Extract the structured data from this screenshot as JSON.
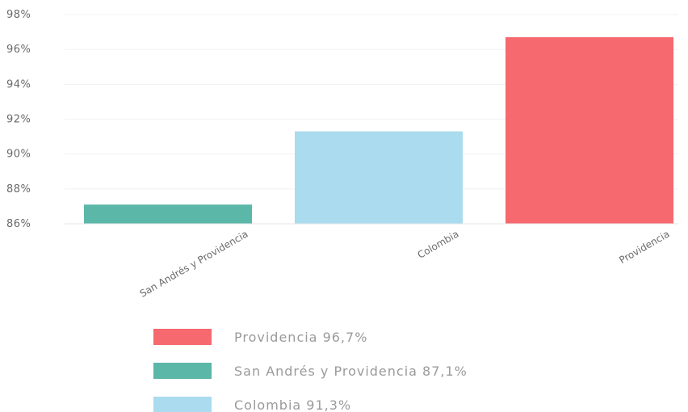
{
  "chart_data": {
    "type": "bar",
    "categories": [
      "San Andrés y Providencia",
      "Colombia",
      "Providencia"
    ],
    "values": [
      87.1,
      91.3,
      96.7
    ],
    "colors": [
      "#5bb7a8",
      "#aadbee",
      "#f5696f"
    ],
    "yticks": [
      "86%",
      "88%",
      "90%",
      "92%",
      "94%",
      "96%",
      "98%"
    ],
    "ylim": [
      86,
      98
    ],
    "grid": true,
    "legend_position": "bottom",
    "legend": [
      {
        "label": "Providencia  96,7%",
        "color": "#f5696f"
      },
      {
        "label": "San Andrés y Providencia  87,1%",
        "color": "#5bb7a8"
      },
      {
        "label": "Colombia  91,3%",
        "color": "#aadbee"
      }
    ]
  }
}
